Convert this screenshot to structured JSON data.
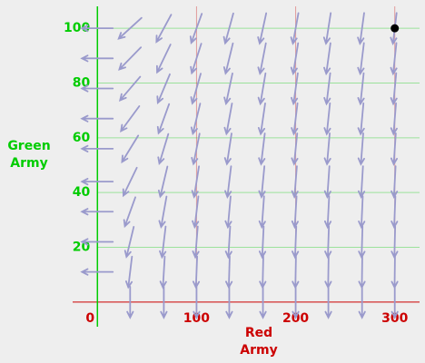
{
  "chart_data": {
    "type": "quiver",
    "xlabel": [
      "Red",
      "Army"
    ],
    "ylabel": [
      "Green",
      "Army"
    ],
    "x": [
      0,
      33,
      67,
      100,
      133,
      167,
      200,
      233,
      267,
      300
    ],
    "y": [
      0,
      11,
      22,
      33,
      44,
      56,
      67,
      78,
      89,
      100
    ],
    "u": [
      0,
      -11,
      -22,
      -33,
      -44,
      -56,
      -67,
      -78,
      -89,
      -100
    ],
    "v": [
      0,
      -33,
      -67,
      -100,
      -133,
      -167,
      -200,
      -233,
      -267,
      -300
    ],
    "color": "#9a9acc",
    "point": {
      "x": 300,
      "y": 100
    },
    "xlim": [
      -25,
      325
    ],
    "ylim": [
      -9,
      108
    ],
    "xticks": [
      0,
      100,
      200,
      300
    ],
    "yticks": [
      20,
      40,
      60,
      80,
      100
    ],
    "xcolor": "#cc0000",
    "ycolor": "#00cc00",
    "grid": true
  }
}
